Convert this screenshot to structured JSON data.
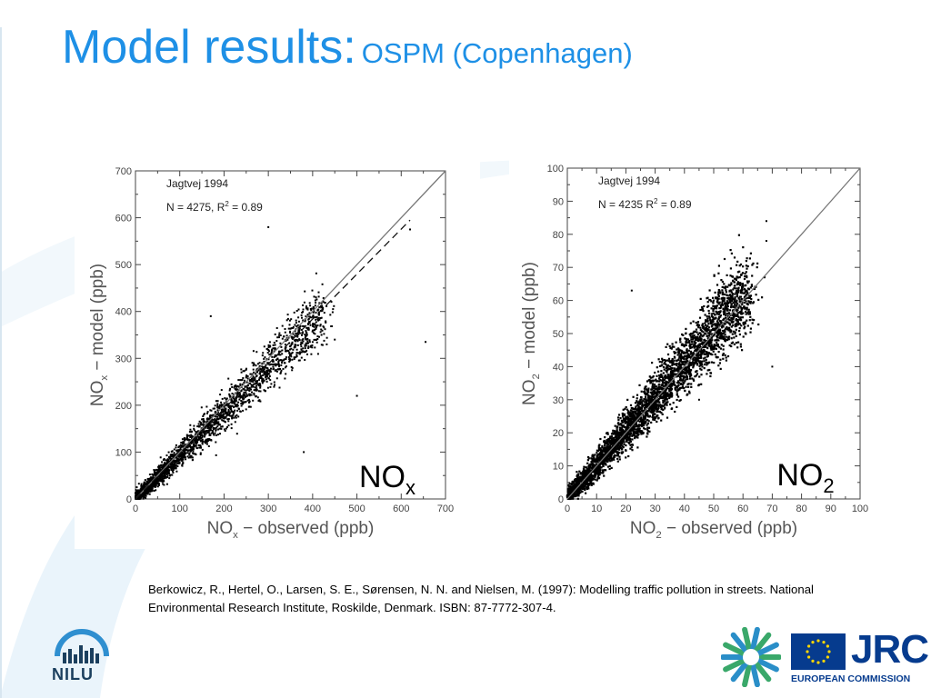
{
  "slide": {
    "title": "Model results:",
    "subtitle": "OSPM (Copenhagen)",
    "citation": "Berkowicz, R., Hertel, O., Larsen, S. E., Sørensen, N. N. and Nielsen, M. (1997): Modelling traffic pollution in streets. National Environmental Research Institute, Roskilde, Denmark. ISBN: 87-7772-307-4.",
    "nilu_logo_text": "NILU",
    "jrc_logo_text": "JRC",
    "ec_logo_text": "EUROPEAN COMMISSION"
  },
  "colors": {
    "title": "#1e90e6",
    "points": "#000000",
    "lines": "#777777",
    "eu_blue": "#063b8e",
    "background_swoosh": "#eaf4fb"
  },
  "chart_data": [
    {
      "type": "scatter",
      "station_label": "Jagtvej  1994",
      "stats_label_prefix": "N  =  4275,  R",
      "stats_label_suffix": "=  0.89",
      "panel_label_main": "NO",
      "panel_label_sub": "x",
      "xlabel_main": "NO",
      "xlabel_sub": "x",
      "xlabel_rest": " −  observed  (ppb)",
      "ylabel_main": "NO",
      "ylabel_sub": "x",
      "ylabel_rest": " −  model  (ppb)",
      "xlim": [
        0,
        700
      ],
      "ylim": [
        0,
        700
      ],
      "xticks": [
        0,
        100,
        200,
        300,
        400,
        500,
        600,
        700
      ],
      "yticks": [
        0,
        100,
        200,
        300,
        400,
        500,
        600,
        700
      ],
      "n_points": 4275,
      "r_squared": 0.89,
      "one_to_one_line": [
        [
          0,
          0
        ],
        [
          700,
          700
        ]
      ],
      "regression_line": [
        [
          0,
          0
        ],
        [
          620,
          595
        ]
      ],
      "outliers": [
        [
          620,
          575
        ],
        [
          420,
          350
        ],
        [
          500,
          220
        ],
        [
          655,
          335
        ],
        [
          380,
          100
        ],
        [
          300,
          580
        ],
        [
          170,
          390
        ],
        [
          450,
          340
        ]
      ]
    },
    {
      "type": "scatter",
      "station_label": "Jagtvej  1994",
      "stats_label_prefix": "N  =  4235  R",
      "stats_label_suffix": "=  0.89",
      "panel_label_main": "NO",
      "panel_label_sub": "2",
      "xlabel_main": "NO",
      "xlabel_sub": "2",
      "xlabel_rest": " −  observed  (ppb)",
      "ylabel_main": "NO",
      "ylabel_sub": "2",
      "ylabel_rest": "  −  model  (ppb)",
      "xlim": [
        0,
        100
      ],
      "ylim": [
        0,
        100
      ],
      "xticks": [
        0,
        10,
        20,
        30,
        40,
        50,
        60,
        70,
        80,
        90,
        100
      ],
      "yticks": [
        0,
        10,
        20,
        30,
        40,
        50,
        60,
        70,
        80,
        90,
        100
      ],
      "n_points": 4235,
      "r_squared": 0.89,
      "one_to_one_line": [
        [
          0,
          0
        ],
        [
          100,
          100
        ]
      ],
      "outliers": [
        [
          68,
          84
        ],
        [
          68,
          78
        ],
        [
          70,
          40
        ],
        [
          50,
          60
        ],
        [
          45,
          30
        ],
        [
          22,
          63
        ]
      ]
    }
  ]
}
